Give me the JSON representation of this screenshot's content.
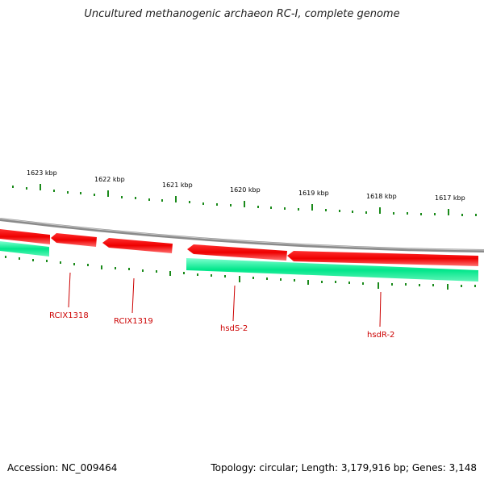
{
  "title": "Uncultured methanogenic archaeon RC-I, complete genome",
  "footer": {
    "accession": "Accession: NC_009464",
    "summary": "Topology: circular; Length: 3,179,916 bp; Genes: 3,148"
  },
  "colors": {
    "backbone": "#808080",
    "forward_gene": "#ff0000",
    "reverse_gene": "#00e68a",
    "tick": "#1a8a1a",
    "label": "#cc0000"
  },
  "ticks": [
    "1623 kbp",
    "1622 kbp",
    "1621 kbp",
    "1620 kbp",
    "1619 kbp",
    "1618 kbp",
    "1617 kbp"
  ],
  "gene_labels": [
    "RCIX1318",
    "RCIX1319",
    "hsdS-2",
    "hsdR-2"
  ]
}
